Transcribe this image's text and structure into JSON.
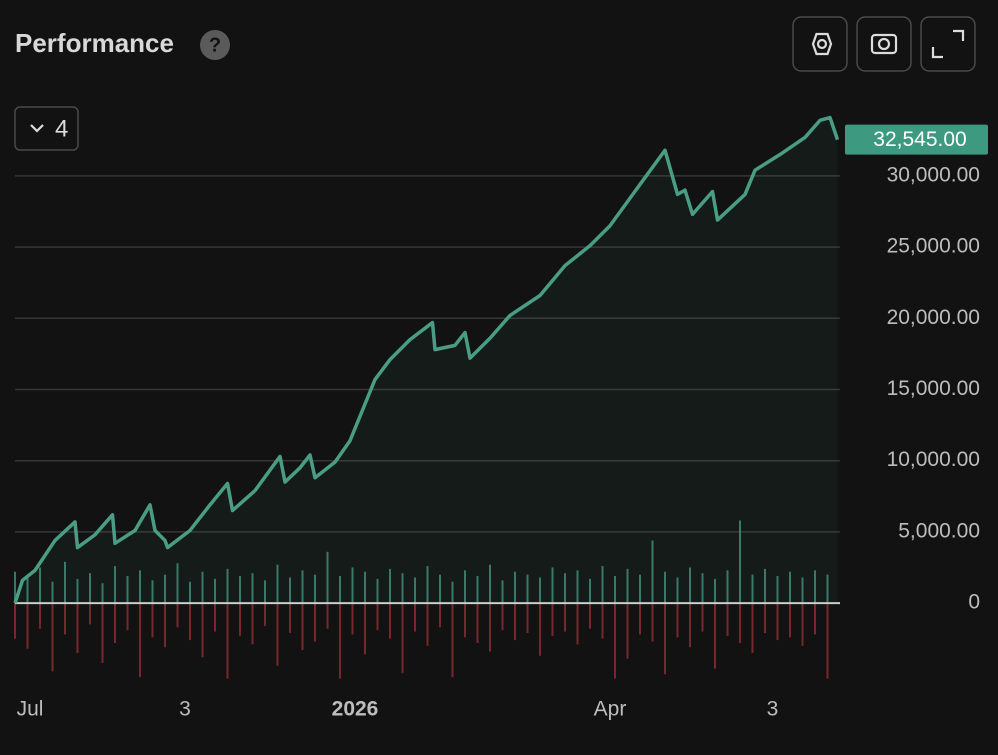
{
  "header": {
    "title": "Performance",
    "help": "?"
  },
  "controls": {
    "series_count": "4"
  },
  "chart_data": {
    "type": "line",
    "xlim": [
      0,
      330
    ],
    "xticks": [
      {
        "value": 6,
        "label": "Jul"
      },
      {
        "value": 68,
        "label": "3"
      },
      {
        "value": 136,
        "label": "2026",
        "bold": true
      },
      {
        "value": 238,
        "label": "Apr"
      },
      {
        "value": 303,
        "label": "3"
      }
    ],
    "ylim": [
      -5400,
      35400
    ],
    "yticks": [
      {
        "value": 0,
        "label": "0"
      },
      {
        "value": 5000,
        "label": "5,000.00"
      },
      {
        "value": 10000,
        "label": "10,000.00"
      },
      {
        "value": 15000,
        "label": "15,000.00"
      },
      {
        "value": 20000,
        "label": "20,000.00"
      },
      {
        "value": 25000,
        "label": "25,000.00"
      },
      {
        "value": 30000,
        "label": "30,000.00"
      }
    ],
    "grid": true,
    "series": [
      {
        "color": "#4a9d85",
        "x": [
          0,
          3,
          8,
          16,
          24,
          25,
          32,
          39,
          40,
          48,
          54,
          56,
          60,
          61,
          70,
          78,
          85,
          87,
          96,
          106,
          108,
          114,
          118,
          120,
          128,
          134,
          144,
          150,
          158,
          167,
          168,
          176,
          180,
          182,
          190,
          198,
          210,
          220,
          230,
          238,
          250,
          260,
          265,
          268,
          271,
          279,
          281,
          292,
          296,
          306,
          316,
          322,
          326,
          329
        ],
        "values": [
          0,
          1600,
          2300,
          4400,
          5700,
          3900,
          4800,
          6200,
          4200,
          5100,
          6900,
          5100,
          4400,
          3900,
          5100,
          6900,
          8400,
          6500,
          7900,
          10300,
          8500,
          9500,
          10400,
          8800,
          9900,
          11400,
          15700,
          17100,
          18500,
          19700,
          17800,
          18100,
          19000,
          17200,
          18600,
          20200,
          21600,
          23700,
          25100,
          26500,
          29400,
          31800,
          28700,
          29000,
          27300,
          28900,
          26900,
          28700,
          30400,
          31500,
          32700,
          33900,
          34100,
          32545
        ]
      }
    ],
    "bars": {
      "x": [
        0,
        5,
        10,
        15,
        20,
        25,
        30,
        35,
        40,
        45,
        50,
        55,
        60,
        65,
        70,
        75,
        80,
        85,
        90,
        95,
        100,
        105,
        110,
        115,
        120,
        125,
        130,
        135,
        140,
        145,
        150,
        155,
        160,
        165,
        170,
        175,
        180,
        185,
        190,
        195,
        200,
        205,
        210,
        215,
        220,
        225,
        230,
        235,
        240,
        245,
        250,
        255,
        260,
        265,
        270,
        275,
        280,
        285,
        290,
        295,
        300,
        305,
        310,
        315,
        320,
        325
      ],
      "series": [
        {
          "color": "#3f8a75",
          "values": [
            2200,
            1800,
            2500,
            1500,
            2900,
            1700,
            2100,
            1400,
            2600,
            1900,
            2300,
            1600,
            2000,
            2800,
            1500,
            2200,
            1700,
            2400,
            1900,
            2100,
            1600,
            2700,
            1800,
            2300,
            2000,
            3600,
            1900,
            2500,
            2200,
            1700,
            2400,
            2100,
            1800,
            2600,
            2000,
            1500,
            2300,
            1900,
            2700,
            1600,
            2200,
            2000,
            1800,
            2500,
            2100,
            2300,
            1700,
            2600,
            1900,
            2400,
            2000,
            4400,
            2200,
            1800,
            2500,
            2100,
            1700,
            2300,
            5800,
            2000,
            2400,
            1900,
            2200,
            1800,
            2300,
            2000
          ]
        },
        {
          "color": "#8a2d33",
          "values": [
            -2500,
            -3200,
            -1800,
            -4800,
            -2200,
            -3500,
            -1500,
            -4200,
            -2800,
            -1900,
            -5200,
            -2400,
            -3100,
            -1700,
            -2600,
            -3800,
            -2000,
            -5300,
            -2300,
            -2900,
            -1600,
            -4400,
            -2100,
            -3300,
            -2700,
            -1800,
            -5300,
            -2200,
            -3600,
            -1900,
            -2500,
            -4900,
            -2000,
            -3000,
            -1700,
            -5200,
            -2400,
            -2800,
            -3400,
            -1900,
            -2600,
            -2100,
            -3700,
            -2300,
            -2000,
            -2900,
            -1800,
            -2500,
            -5300,
            -3900,
            -2200,
            -2700,
            -5000,
            -2400,
            -3100,
            -2000,
            -4600,
            -2300,
            -2800,
            -3500,
            -2100,
            -2600,
            -2400,
            -3000,
            -2200,
            -5300
          ]
        }
      ]
    },
    "annotations": [
      {
        "x": 329,
        "y": 32545,
        "label": "32,545.00"
      }
    ]
  }
}
